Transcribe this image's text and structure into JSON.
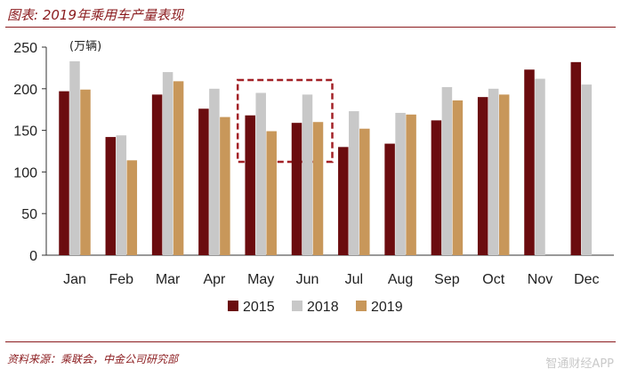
{
  "header": {
    "title": "图表: 2019年乘用车产量表现"
  },
  "footer": {
    "source": "资料来源：乘联会，中金公司研究部",
    "watermark": "智通财经APP"
  },
  "colors": {
    "2015": "#6b0c0f",
    "2018": "#c8c8c8",
    "2019": "#c8975a",
    "accent": "#8a1a1d",
    "highlight_box": "#a32126"
  },
  "chart_data": {
    "type": "bar",
    "unit_label": "(万辆)",
    "categories": [
      "Jan",
      "Feb",
      "Mar",
      "Apr",
      "May",
      "Jun",
      "Jul",
      "Aug",
      "Sep",
      "Oct",
      "Nov",
      "Dec"
    ],
    "series": [
      {
        "name": "2015",
        "values": [
          197,
          142,
          193,
          176,
          168,
          159,
          130,
          134,
          162,
          190,
          223,
          232
        ]
      },
      {
        "name": "2018",
        "values": [
          233,
          144,
          220,
          200,
          195,
          193,
          173,
          171,
          202,
          200,
          212,
          205
        ]
      },
      {
        "name": "2019",
        "values": [
          199,
          114,
          209,
          166,
          149,
          160,
          152,
          169,
          186,
          193,
          null,
          null
        ]
      }
    ],
    "ylim": [
      0,
      250
    ],
    "yticks": [
      0,
      50,
      100,
      150,
      200,
      250
    ],
    "highlight": [
      "May",
      "Jun"
    ],
    "legend_position": "bottom",
    "grid": false
  }
}
